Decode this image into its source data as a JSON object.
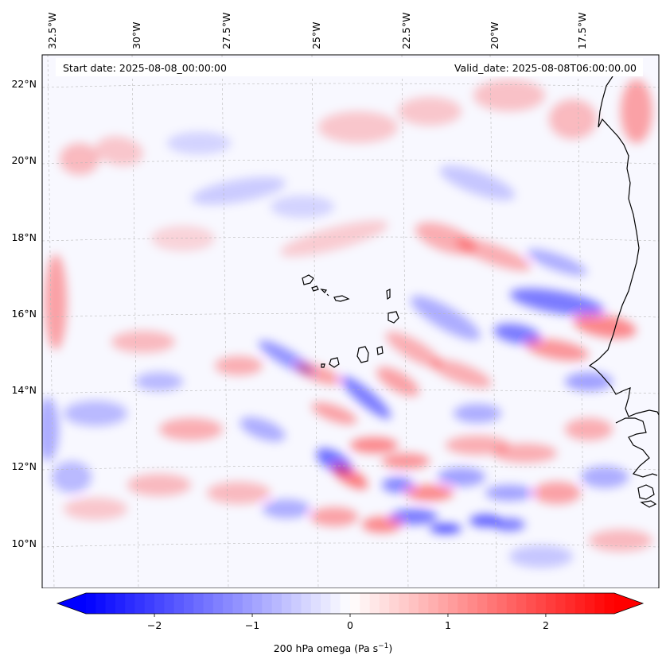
{
  "header": {
    "start_date": "Start date: 2025-08-08_00:00:00",
    "valid_date": "Valid_date: 2025-08-08T06:00:00.00"
  },
  "map": {
    "field": "200 hPa omega",
    "longitude_labels": [
      "32.5°W",
      "30°W",
      "27.5°W",
      "25°W",
      "22.5°W",
      "20°W",
      "17.5°W"
    ],
    "latitude_labels": [
      "22°N",
      "20°N",
      "18°N",
      "16°N",
      "14°N",
      "12°N",
      "10°N"
    ],
    "gridlines": true,
    "colormap": "bwr",
    "colors": {
      "negative": "#0000ff",
      "zero": "#ffffff",
      "positive": "#ff0000",
      "coastline": "#000000"
    }
  },
  "colorbar": {
    "label_main": "200 hPa omega (Pa s",
    "label_sup": "−1",
    "label_end": ")",
    "min": -2.7,
    "max": 2.7,
    "extend": "both",
    "ticks": [
      {
        "value": -2,
        "label": "−2"
      },
      {
        "value": -1,
        "label": "−1"
      },
      {
        "value": 0,
        "label": "0"
      },
      {
        "value": 1,
        "label": "1"
      },
      {
        "value": 2,
        "label": "2"
      }
    ]
  }
}
